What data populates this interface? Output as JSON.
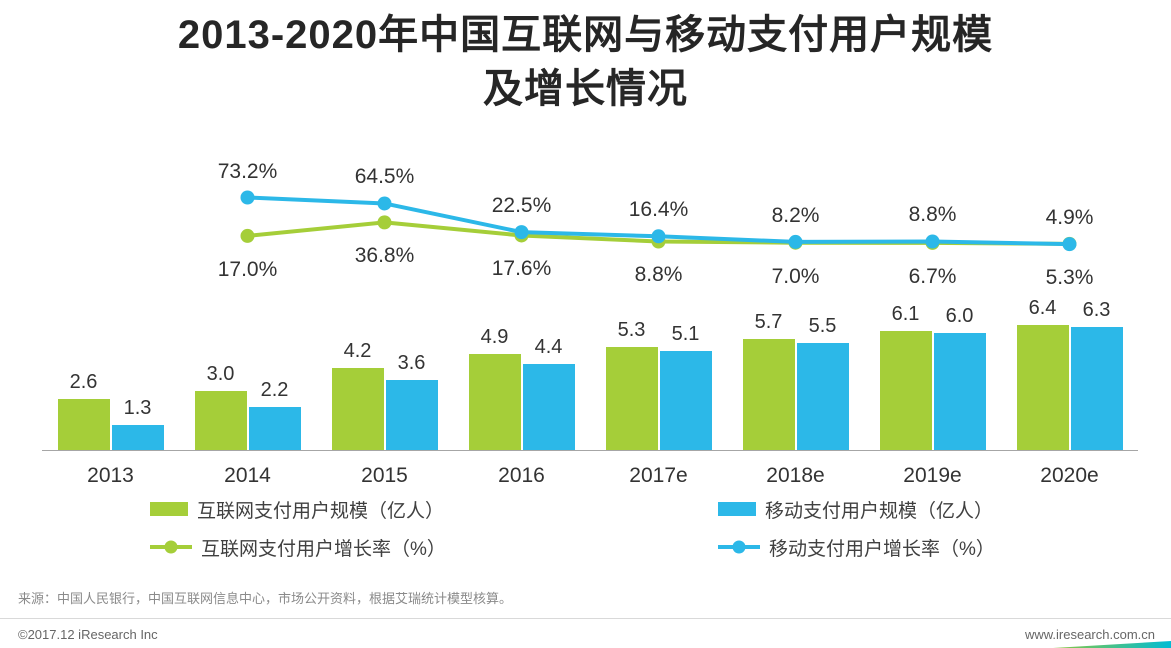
{
  "title": {
    "line1": "2013-2020年中国互联网与移动支付用户规模",
    "line2": "及增长情况"
  },
  "colors": {
    "internet_green": "#a5ce39",
    "mobile_blue": "#2cb8e8"
  },
  "chart_data": {
    "type": "bar",
    "subtype": "grouped bars with two growth-rate lines",
    "categories": [
      "2013",
      "2014",
      "2015",
      "2016",
      "2017e",
      "2018e",
      "2019e",
      "2020e"
    ],
    "bar_series": [
      {
        "name": "互联网支付用户规模（亿人）",
        "color": "#a5ce39",
        "values": [
          2.6,
          3.0,
          4.2,
          4.9,
          5.3,
          5.7,
          6.1,
          6.4
        ]
      },
      {
        "name": "移动支付用户规模（亿人）",
        "color": "#2cb8e8",
        "values": [
          1.3,
          2.2,
          3.6,
          4.4,
          5.1,
          5.5,
          6.0,
          6.3
        ]
      }
    ],
    "line_series": [
      {
        "name": "互联网支付用户增长率（%）",
        "color": "#a5ce39",
        "label_position": "below",
        "values": [
          null,
          17.0,
          36.8,
          17.6,
          8.8,
          7.0,
          6.7,
          5.3
        ]
      },
      {
        "name": "移动支付用户增长率（%）",
        "color": "#2cb8e8",
        "label_position": "above",
        "values": [
          null,
          73.2,
          64.5,
          22.5,
          16.4,
          8.2,
          8.8,
          4.9
        ]
      }
    ],
    "ylim_bars": [
      0,
      7
    ],
    "ylim_lines_pct": [
      0,
      80
    ],
    "grid": false,
    "legend_position": "bottom"
  },
  "legend": {
    "items": [
      {
        "label": "互联网支付用户规模（亿人）",
        "type": "bar",
        "color": "#a5ce39"
      },
      {
        "label": "移动支付用户规模（亿人）",
        "type": "bar",
        "color": "#2cb8e8"
      },
      {
        "label": "互联网支付用户增长率（%）",
        "type": "line",
        "color": "#a5ce39"
      },
      {
        "label": "移动支付用户增长率（%）",
        "type": "line",
        "color": "#2cb8e8"
      }
    ]
  },
  "footer": {
    "source": "来源：中国人民银行，中国互联网信息中心，市场公开资料，根据艾瑞统计模型核算。",
    "copyright": "©2017.12 iResearch Inc",
    "website": "www.iresearch.com.cn"
  }
}
